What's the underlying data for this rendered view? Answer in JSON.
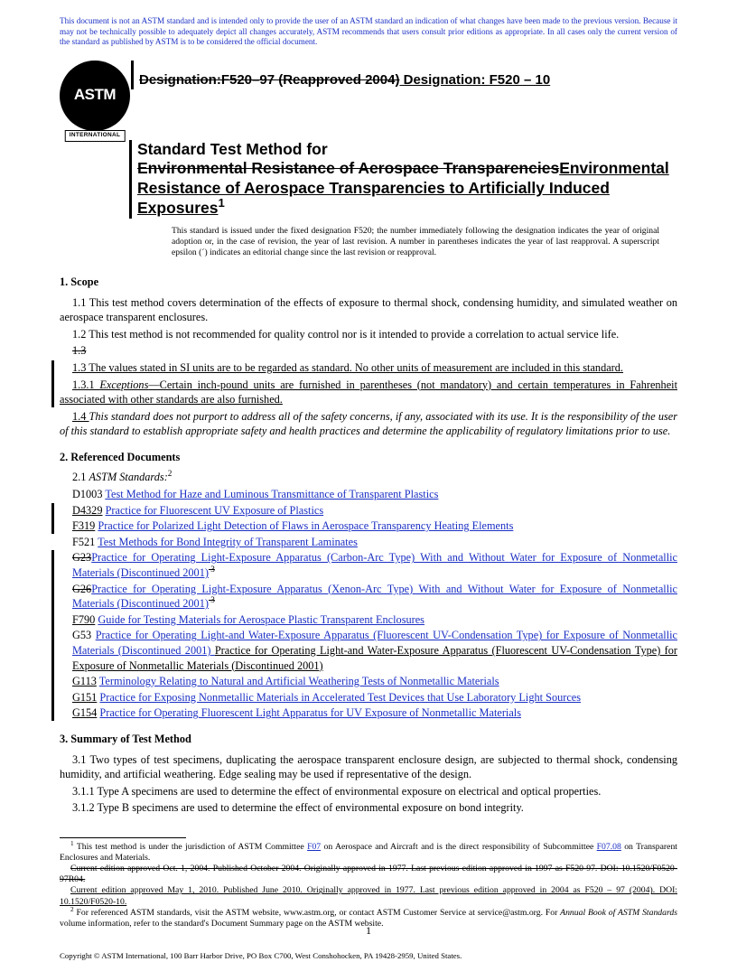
{
  "disclaimer": "This document is not an ASTM standard and is intended only to provide the user of an ASTM standard an indication of what changes have been made to the previous version. Because it may not be technically possible to adequately depict all changes accurately, ASTM recommends that users consult prior editions as appropriate. In all cases only the current version of the standard as published by ASTM is to be considered the official document.",
  "logo_text": "ASTM",
  "logo_sub": "INTERNATIONAL",
  "designation_old": "Designation:F520–97 (Reapproved 2004)",
  "designation_new": " Designation: F520 – 10",
  "title_prefix": "Standard Test Method for",
  "title_old": "Environmental Resistance of Aerospace Transparencies",
  "title_new": "Environmental Resistance of Aerospace Transparencies to Artificially Induced Exposures",
  "title_sup": "1",
  "issue_note": "This standard is issued under the fixed designation F520; the number immediately following the designation indicates the year of original adoption or, in the case of revision, the year of last revision. A number in parentheses indicates the year of last reapproval. A superscript epsilon (´) indicates an editorial change since the last revision or reapproval.",
  "sec1_head": "1. Scope",
  "sec1_1": "1.1 This test method covers determination of the effects of exposure to thermal shock, condensing humidity, and simulated weather on aerospace transparent enclosures.",
  "sec1_2": "1.2 This test method is not recommended for quality control nor is it intended to provide a correlation to actual service life.",
  "sec1_2b": "1.3",
  "sec1_3": "1.3 The values stated in SI units are to be regarded as standard. No other units of measurement are included in this standard.",
  "sec1_3_1a": "1.3.1 ",
  "sec1_3_1b": "Exceptions",
  "sec1_3_1c": "—Certain inch-pound units are furnished in parentheses (not mandatory) and certain temperatures in Fahrenheit associated with other standards are also furnished.",
  "sec1_4a": "1.4 ",
  "sec1_4b": "This standard does not purport to address all of the safety concerns, if any, associated with its use. It is the responsibility of the user of this standard to establish appropriate safety and health practices and determine the applicability of regulatory limitations prior to use.",
  "sec2_head": "2. Referenced Documents",
  "sec2_1a": "2.1 ",
  "sec2_1b": "ASTM Standards:",
  "sec2_1sup": "2",
  "refs": {
    "d1003": {
      "code": "D1003",
      "text": "Test Method for Haze and Luminous Transmittance of Transparent Plastics"
    },
    "d4329": {
      "code": "D4329",
      "text": "Practice for Fluorescent UV Exposure of Plastics"
    },
    "f319": {
      "code": "F319",
      "text": "Practice for Polarized Light Detection of Flaws in Aerospace Transparency Heating Elements"
    },
    "f521": {
      "code": "F521",
      "text": "Test Methods for Bond Integrity of Transparent Laminates"
    },
    "g23": {
      "code": "G23",
      "text": "Practice for Operating Light-Exposure Apparatus (Carbon-Arc Type) With and Without Water for Exposure of Nonmetallic Materials (Discontinued 2001)"
    },
    "g23sup": " 3",
    "g26": {
      "code": "G26",
      "text": "Practice for Operating Light-Exposure Apparatus (Xenon-Arc Type) With and Without Water for Exposure of Nonmetallic Materials (Discontinued 2001)"
    },
    "g26sup": " 3",
    "f790": {
      "code": "F790",
      "text": "Guide for Testing Materials for Aerospace Plastic Transparent Enclosures"
    },
    "g53": {
      "code": "G53"
    },
    "g53_old": "Practice for Operating Light-and Water-Exposure Apparatus (Fluorescent UV-Condensation Type) for Exposure of Nonmetallic Materials (Discontinued 2001) ",
    "g53_new": "Practice for Operating Light-and Water-Exposure Apparatus (Fluorescent UV-Condensation Type) for Exposure of Nonmetallic Materials (Discontinued 2001)",
    "g113": {
      "code": "G113",
      "text": "Terminology Relating to Natural and Artificial Weathering Tests of Nonmetallic Materials"
    },
    "g151": {
      "code": "G151",
      "text": "Practice for Exposing Nonmetallic Materials in Accelerated Test Devices that Use Laboratory Light Sources"
    },
    "g154": {
      "code": "G154",
      "text": "Practice for Operating Fluorescent Light Apparatus for UV Exposure of Nonmetallic Materials"
    }
  },
  "sec3_head": "3. Summary of Test Method",
  "sec3_1": "3.1 Two types of test specimens, duplicating the aerospace transparent enclosure design, are subjected to thermal shock, condensing humidity, and artificial weathering. Edge sealing may be used if representative of the design.",
  "sec3_1_1": "3.1.1 Type A specimens are used to determine the effect of environmental exposure on electrical and optical properties.",
  "sec3_1_2": "3.1.2 Type B specimens are used to determine the effect of environmental exposure on bond integrity.",
  "fn1_sup": "1",
  "fn1a": " This test method is under the jurisdiction of ASTM Committee ",
  "fn1_link1": "F07",
  "fn1b": " on Aerospace and Aircraft and is the direct responsibility of Subcommittee ",
  "fn1_link2": "F07.08",
  "fn1c": " on Transparent Enclosures and Materials.",
  "fn1_old": "Current edition approved Oct. 1, 2004. Published October 2004. Originally approved in 1977. Last previous edition approved in 1997 as F520-97. DOI: 10.1520/F0520-97R04.",
  "fn1_new1": "Current edition approved May 1, 2010. Published June 2010. Originally approved in 1977. Last previous edition approved in 2004 as F520 – 97 (2004). DOI: ",
  "fn1_new2": "10.1520/F0520-10.",
  "fn2_sup": "2",
  "fn2a": " For referenced ASTM standards, visit the ASTM website, www.astm.org, or contact ASTM Customer Service at service@astm.org. For ",
  "fn2b": "Annual Book of ASTM Standards",
  "fn2c": " volume information, refer to the standard's Document Summary page on the ASTM website.",
  "copyright": "Copyright © ASTM International, 100 Barr Harbor Drive, PO Box C700, West Conshohocken, PA 19428-2959, United States.",
  "pagenum": "1"
}
